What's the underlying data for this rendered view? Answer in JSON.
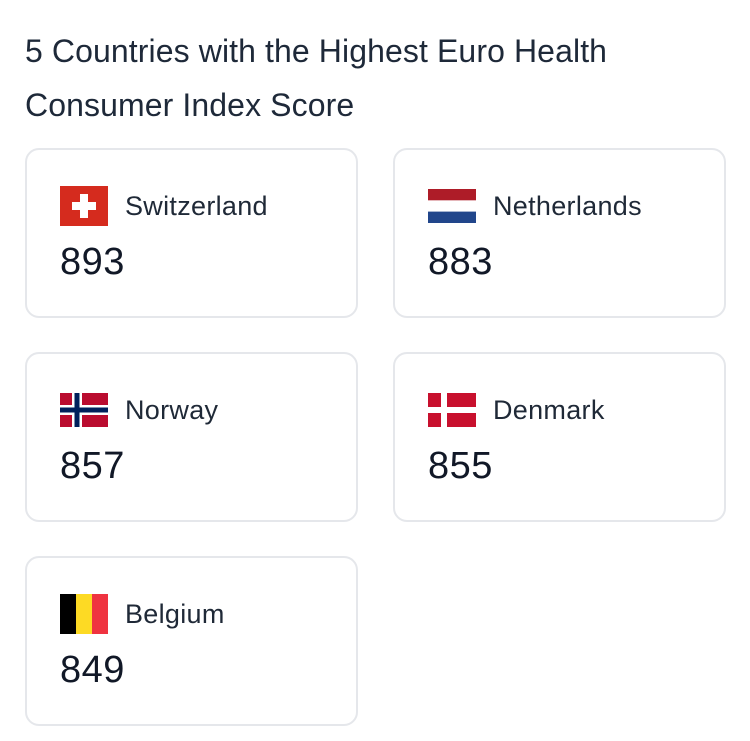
{
  "title": "5 Countries with the Highest Euro Health Consumer Index Score",
  "countries": [
    {
      "name": "Switzerland",
      "score": "893",
      "flag_icon": "switzerland-flag-icon"
    },
    {
      "name": "Netherlands",
      "score": "883",
      "flag_icon": "netherlands-flag-icon"
    },
    {
      "name": "Norway",
      "score": "857",
      "flag_icon": "norway-flag-icon"
    },
    {
      "name": "Denmark",
      "score": "855",
      "flag_icon": "denmark-flag-icon"
    },
    {
      "name": "Belgium",
      "score": "849",
      "flag_icon": "belgium-flag-icon"
    }
  ],
  "colors": {
    "card_border": "#e5e7eb",
    "text": "#1f2937",
    "swiss_red": "#d52b1e",
    "dutch_red": "#ae1c28",
    "dutch_blue": "#21468b",
    "norway_red": "#ba0c2f",
    "norway_blue": "#00205b",
    "danish_red": "#c8102e",
    "belgium_black": "#000000",
    "belgium_yellow": "#fdda24",
    "belgium_red": "#ef3340"
  }
}
